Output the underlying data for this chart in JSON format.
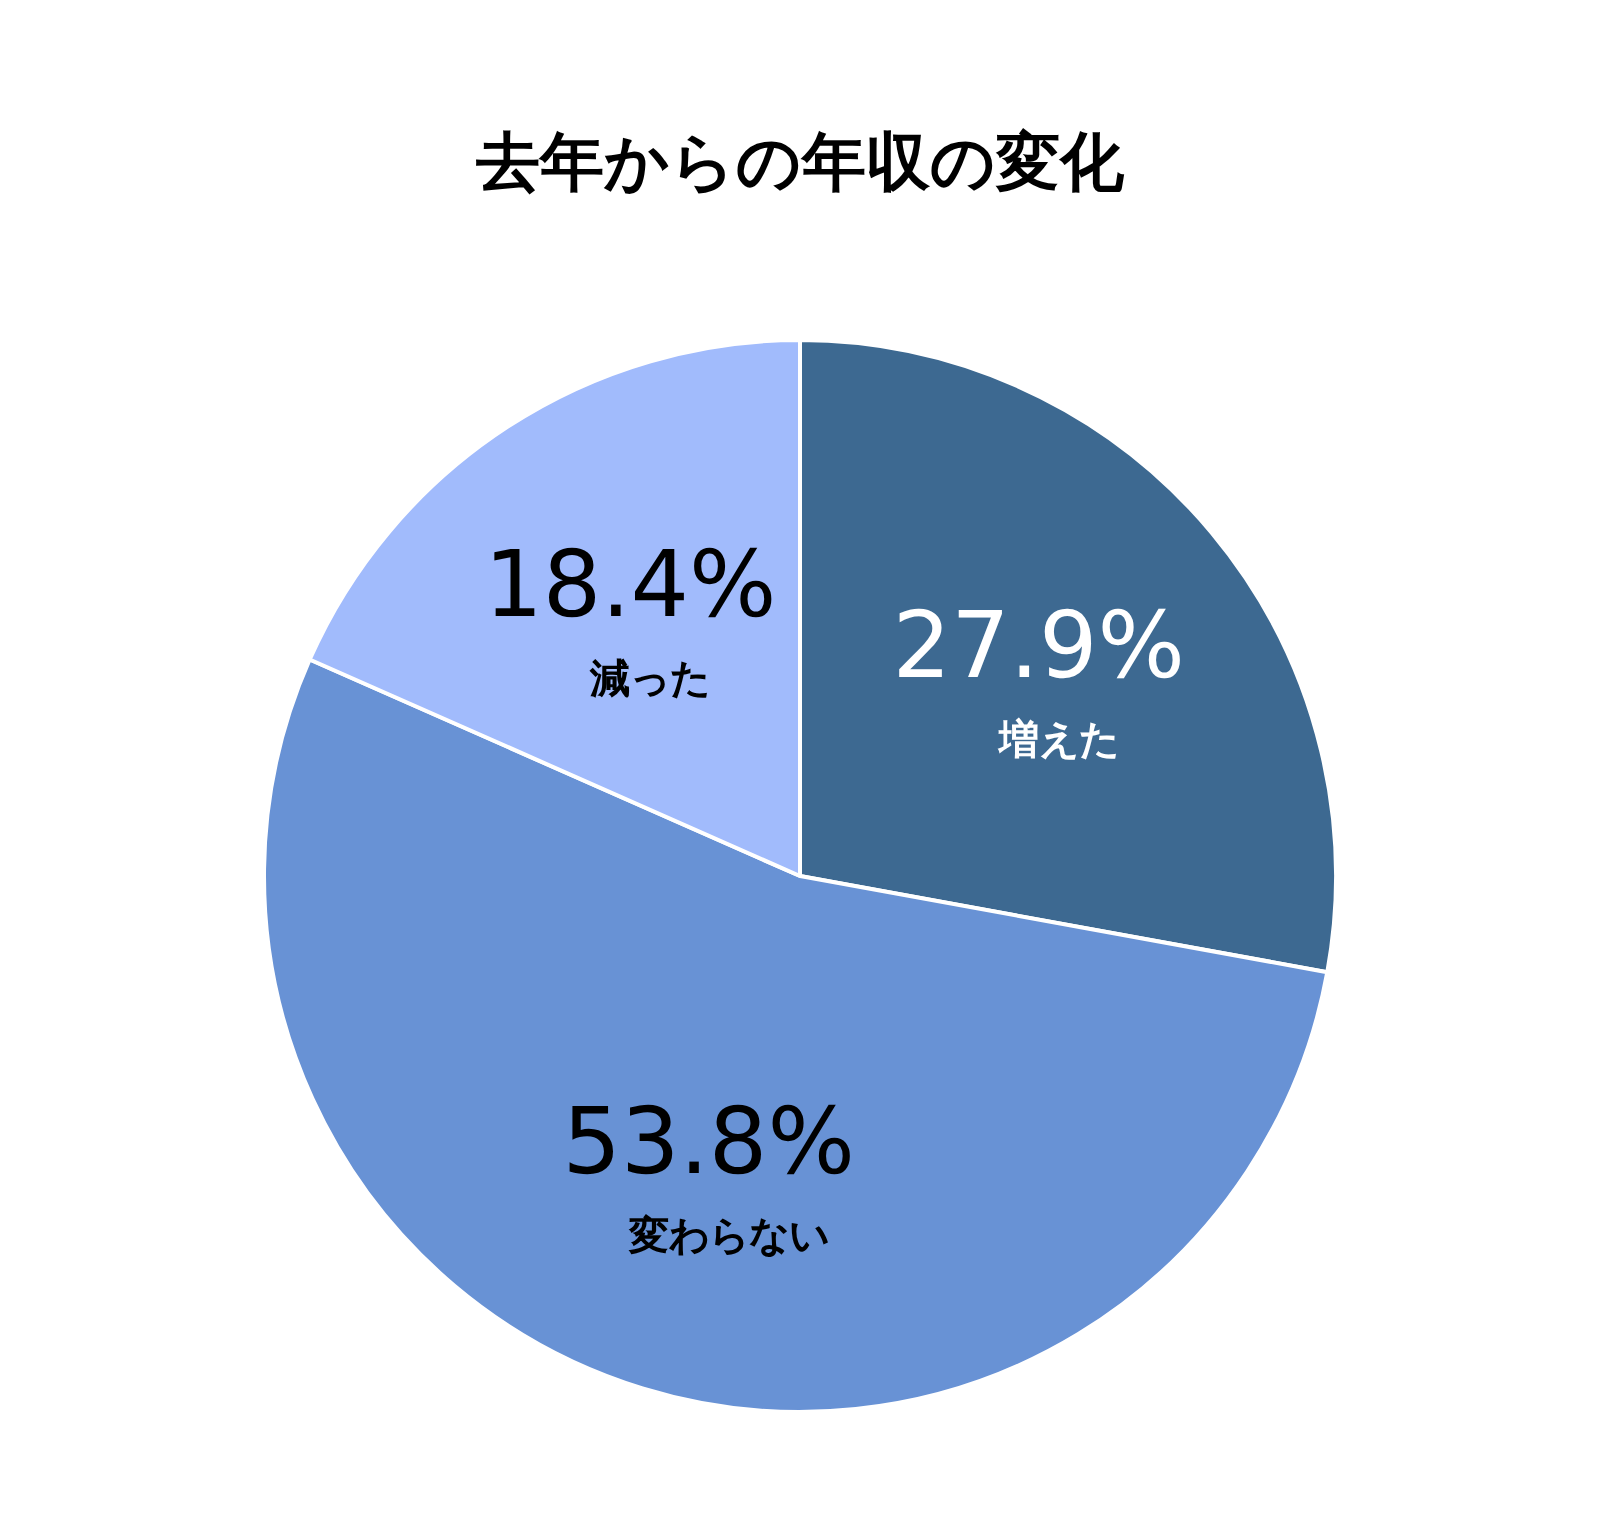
{
  "chart_data": {
    "type": "pie",
    "title": "去年からの年収の変化",
    "categories": [
      "増えた",
      "変わらない",
      "減った"
    ],
    "values": [
      27.9,
      53.8,
      18.4
    ],
    "colors": [
      "#3d6991",
      "#6892d5",
      "#a1bbfc"
    ],
    "value_labels": [
      "27.9%",
      "53.8%",
      "18.4%"
    ]
  }
}
